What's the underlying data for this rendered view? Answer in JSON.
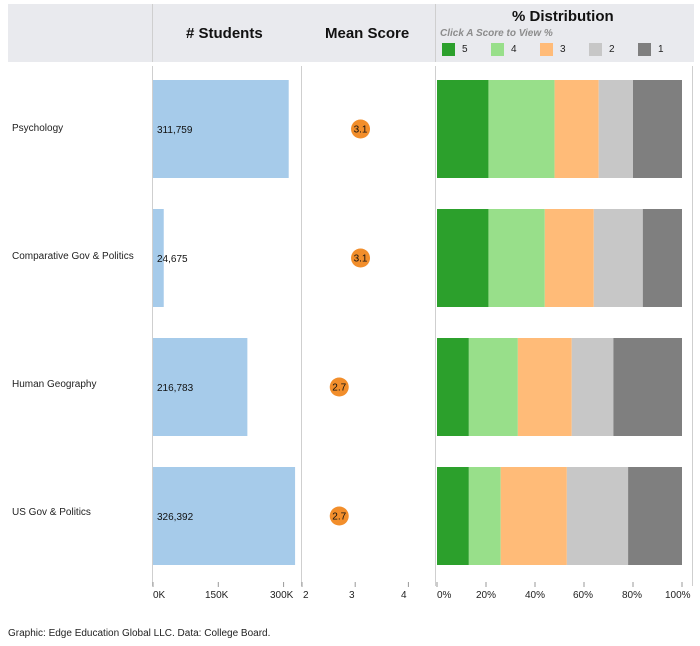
{
  "headers": {
    "students": "# Students",
    "mean_score": "Mean Score",
    "distribution": "% Distribution",
    "distribution_hint": "Click A Score to View %"
  },
  "legend": [
    {
      "label": "5",
      "color": "#2ca02c"
    },
    {
      "label": "4",
      "color": "#98df8a"
    },
    {
      "label": "3",
      "color": "#ffbb78"
    },
    {
      "label": "2",
      "color": "#c7c7c7"
    },
    {
      "label": "1",
      "color": "#7f7f7f"
    }
  ],
  "chart_data": {
    "type": "bar",
    "categories": [
      "Psychology",
      "Comparative Gov & Politics",
      "Human Geography",
      "US Gov & Politics"
    ],
    "students": {
      "values": [
        311759,
        24675,
        216783,
        326392
      ],
      "value_labels": [
        "311,759",
        "24,675",
        "216,783",
        "326,392"
      ],
      "xlim": [
        0,
        340000
      ],
      "ticks": [
        "0K",
        "150K",
        "300K"
      ],
      "tick_values": [
        0,
        150000,
        300000
      ],
      "bar_color": "#a6cbea"
    },
    "mean_score": {
      "values": [
        3.1,
        3.1,
        2.7,
        2.7
      ],
      "value_labels": [
        "3.1",
        "3.1",
        "2.7",
        "2.7"
      ],
      "xlim": [
        2,
        4.5
      ],
      "ticks": [
        "2",
        "3",
        "4"
      ],
      "tick_values": [
        2,
        3,
        4
      ],
      "dot_color": "#f28e2b"
    },
    "distribution": {
      "series": [
        {
          "name": "5",
          "values": [
            21,
            21,
            13,
            13
          ]
        },
        {
          "name": "4",
          "values": [
            27,
            23,
            20,
            13
          ]
        },
        {
          "name": "3",
          "values": [
            18,
            20,
            22,
            27
          ]
        },
        {
          "name": "2",
          "values": [
            14,
            20,
            17,
            25
          ]
        },
        {
          "name": "1",
          "values": [
            20,
            16,
            28,
            22
          ]
        }
      ],
      "xlim": [
        0,
        100
      ],
      "ticks": [
        "0%",
        "20%",
        "40%",
        "60%",
        "80%",
        "100%"
      ],
      "tick_values": [
        0,
        20,
        40,
        60,
        80,
        100
      ]
    }
  },
  "footer": "Graphic: Edge Education Global LLC. Data: College Board."
}
